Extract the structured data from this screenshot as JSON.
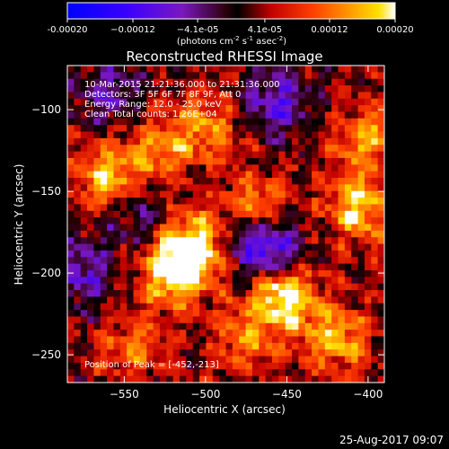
{
  "chart_data": {
    "type": "heatmap",
    "title": "Reconstructed RHESSI Image",
    "xlabel": "Heliocentric X (arcsec)",
    "ylabel": "Heliocentric Y (arcsec)",
    "xlim": [
      -585,
      -390
    ],
    "ylim": [
      -267,
      -73
    ],
    "x_ticks": [
      -550,
      -500,
      -450,
      -400
    ],
    "x_tick_labels": [
      "−550",
      "−500",
      "−450",
      "−400"
    ],
    "y_ticks": [
      -100,
      -150,
      -200,
      -250
    ],
    "y_tick_labels": [
      "−100",
      "−150",
      "−200",
      "−250"
    ],
    "colorbar": {
      "range": [
        -0.0002,
        0.0002
      ],
      "ticks": [
        -0.0002,
        -0.00012,
        -4.1e-05,
        4.1e-05,
        0.00012,
        0.0002
      ],
      "tick_labels": [
        "-0.00020",
        "−0.00012",
        "−4.1e-05",
        "4.1e-05",
        "0.00012",
        "0.00020"
      ],
      "label_main": "(photons cm",
      "label_exp1": "-2",
      "label_mid1": " s",
      "label_exp2": "-1",
      "label_mid2": " asec",
      "label_exp3": "-2",
      "label_end": ")"
    },
    "annotations": [
      "10-Mar-2015 21:21:36.000 to 21:31:36.000",
      "Detectors: 3F 5F 6F 7F 8F 9F, Att 0",
      "Energy Range: 12.0 - 25.0 keV",
      "Clean     Total counts: 1.26E+04"
    ],
    "peak_label": "Position of Peak = [-452,-213]",
    "peak": [
      -452,
      -213
    ],
    "bright_sources": [
      {
        "x": -560,
        "y": -142,
        "amp": 0.00014
      },
      {
        "x": -500,
        "y": -110,
        "amp": 0.00011
      },
      {
        "x": -505,
        "y": -183,
        "amp": 0.00018
      },
      {
        "x": -520,
        "y": -200,
        "amp": 0.00017
      },
      {
        "x": -452,
        "y": -213,
        "amp": 0.0002
      },
      {
        "x": -470,
        "y": -160,
        "amp": 0.00013
      },
      {
        "x": -405,
        "y": -160,
        "amp": 0.00015
      },
      {
        "x": -400,
        "y": -118,
        "amp": 0.00012
      },
      {
        "x": -420,
        "y": -240,
        "amp": 0.00013
      },
      {
        "x": -475,
        "y": -240,
        "amp": 0.0001
      },
      {
        "x": -545,
        "y": -245,
        "amp": 9e-05
      },
      {
        "x": -530,
        "y": -125,
        "amp": 0.0001
      }
    ],
    "dark_sources": [
      {
        "x": -460,
        "y": -187,
        "amp": -0.00016
      },
      {
        "x": -455,
        "y": -95,
        "amp": -0.00012
      },
      {
        "x": -575,
        "y": -200,
        "amp": -0.0001
      },
      {
        "x": -560,
        "y": -90,
        "amp": -9e-05
      },
      {
        "x": -480,
        "y": -175,
        "amp": -8e-05
      },
      {
        "x": -545,
        "y": -165,
        "amp": -7e-05
      }
    ]
  },
  "footer": {
    "date": "25-Aug-2017 09:07"
  }
}
